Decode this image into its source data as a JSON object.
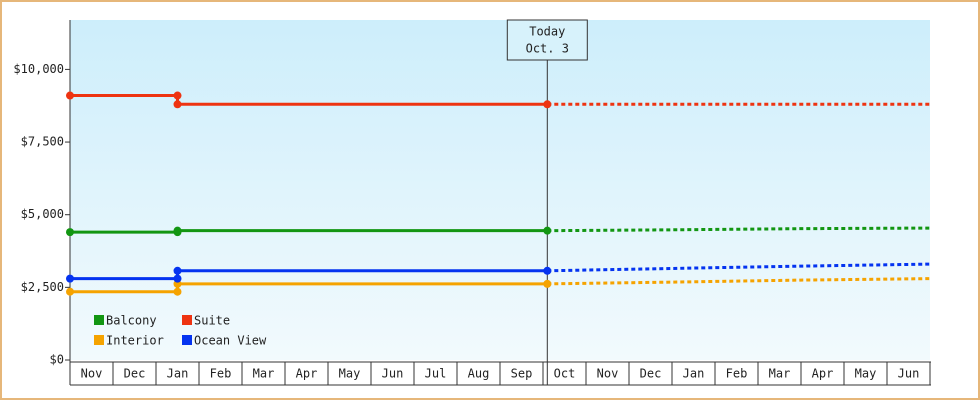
{
  "chart_data": {
    "type": "line",
    "categories": [
      "Nov",
      "Dec",
      "Jan",
      "Feb",
      "Mar",
      "Apr",
      "May",
      "Jun",
      "Jul",
      "Aug",
      "Sep",
      "Oct",
      "Nov",
      "Dec",
      "Jan",
      "Feb",
      "Mar",
      "Apr",
      "May",
      "Jun"
    ],
    "xlim": [
      0,
      20
    ],
    "ylim": [
      0,
      11700
    ],
    "yticks": [
      {
        "value": 0,
        "label": "$0"
      },
      {
        "value": 2500,
        "label": "$2,500"
      },
      {
        "value": 5000,
        "label": "$5,000"
      },
      {
        "value": 7500,
        "label": "$7,500"
      },
      {
        "value": 10000,
        "label": "$10,000"
      }
    ],
    "annotation": {
      "lines": [
        "Today",
        "Oct. 3"
      ],
      "x": 11.1
    },
    "forecast_x": [
      11.1,
      14,
      17,
      20
    ],
    "legend": "lower left",
    "series": [
      {
        "name": "Balcony",
        "color": "#129612",
        "x": [
          0,
          2.5,
          2.5,
          11.1
        ],
        "values": [
          4400,
          4400,
          4450,
          4450
        ],
        "forecast_values": [
          4450,
          4480,
          4520,
          4540
        ]
      },
      {
        "name": "Suite",
        "color": "#ee3311",
        "x": [
          0,
          2.5,
          2.5,
          11.1
        ],
        "values": [
          9100,
          9100,
          8800,
          8800
        ],
        "forecast_values": [
          8800,
          8800,
          8800,
          8800
        ]
      },
      {
        "name": "Interior",
        "color": "#f5a300",
        "x": [
          0,
          2.5,
          2.5,
          11.1
        ],
        "values": [
          2350,
          2350,
          2620,
          2620
        ],
        "forecast_values": [
          2620,
          2680,
          2750,
          2800
        ]
      },
      {
        "name": "Ocean View",
        "color": "#0433f0",
        "x": [
          0,
          2.5,
          2.5,
          11.1
        ],
        "values": [
          2800,
          2800,
          3070,
          3070
        ],
        "forecast_values": [
          3070,
          3150,
          3230,
          3300
        ]
      }
    ]
  }
}
